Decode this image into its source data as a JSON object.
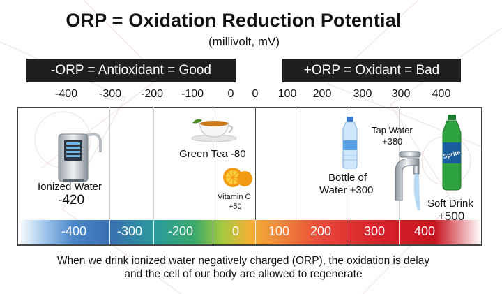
{
  "title": "ORP = Oxidation Reduction Potential",
  "subtitle": "(millivolt, mV)",
  "banners": {
    "good": "-ORP = Antioxidant = Good",
    "bad": "+ORP = Oxidant = Bad"
  },
  "ticks": [
    "-400",
    "-300",
    "-200",
    "-100",
    "0",
    "0",
    "100",
    "200",
    "300",
    "300",
    "400"
  ],
  "scale_labels": [
    "-400",
    "-300",
    "-200",
    "0",
    "100",
    "200",
    "300",
    "400"
  ],
  "items": {
    "ionized_water": {
      "label": "Ionized Water",
      "value": "-420"
    },
    "green_tea": {
      "label": "Green Tea -80"
    },
    "vitamin_c": {
      "label": "Vitamin C",
      "value": "+50"
    },
    "bottle_water": {
      "label": "Bottle of",
      "label2": "Water +300"
    },
    "tap_water": {
      "label": "Tap Water",
      "value": "+380"
    },
    "soft_drink": {
      "label": "Soft Drink",
      "value": "+500",
      "brand": "Sprite"
    }
  },
  "footer": {
    "line1": "When we drink ionized water negatively charged (ORP), the oxidation is delay",
    "line2": "and the cell of our body are allowed to regenerate"
  },
  "colors": {
    "banner": "#1f1f1f",
    "frame": "#444444"
  }
}
